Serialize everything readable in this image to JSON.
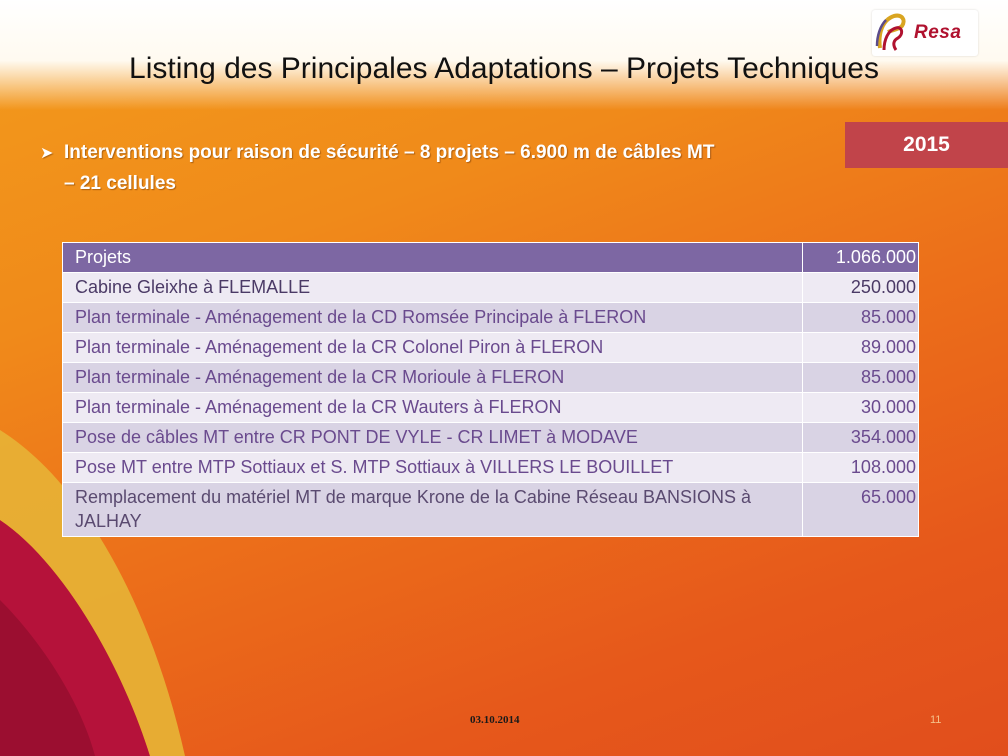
{
  "logo": {
    "text": "Resa"
  },
  "slide": {
    "title": "Listing des Principales Adaptations – Projets Techniques",
    "year": "2015",
    "bullet_line1": "Interventions pour raison de sécurité – 8 projets – 6.900 m de câbles MT",
    "bullet_line2": "– 21 cellules",
    "footer_date": "03.10.2014",
    "page_number": "11"
  },
  "table": {
    "header": {
      "project": "Projets",
      "amount": "1.066.000"
    },
    "rows": [
      {
        "project": "Cabine Gleixhe à FLEMALLE",
        "amount": "250.000"
      },
      {
        "project": "Plan terminale - Aménagement de la CD Romsée Principale à FLERON",
        "amount": "85.000"
      },
      {
        "project": "Plan terminale - Aménagement de la CR Colonel Piron à FLERON",
        "amount": "89.000"
      },
      {
        "project": "Plan terminale - Aménagement de la CR Morioule à FLERON",
        "amount": "85.000"
      },
      {
        "project": "Plan terminale - Aménagement de la CR Wauters à FLERON",
        "amount": "30.000"
      },
      {
        "project": "Pose de câbles MT entre CR PONT DE VYLE - CR LIMET à MODAVE",
        "amount": "354.000"
      },
      {
        "project": "Pose MT entre MTP Sottiaux et S. MTP Sottiaux à VILLERS LE BOUILLET",
        "amount": "108.000"
      },
      {
        "project": "Remplacement du matériel MT de marque Krone de la Cabine Réseau BANSIONS à JALHAY",
        "amount": "65.000"
      }
    ]
  },
  "colors": {
    "year_badge": "#c1444a",
    "table_header": "#7d67a3",
    "table_row_light": "#eeeaf3",
    "table_row_alt": "#d9d3e4",
    "table_text": "#6a4a8e"
  }
}
